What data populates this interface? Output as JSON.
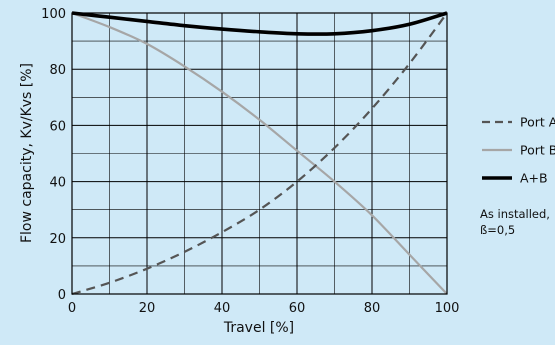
{
  "chart_data": {
    "type": "line",
    "title": "",
    "xlabel": "Travel [%]",
    "ylabel": "Flow capacity, Kv/Kvs [%]",
    "xlim": [
      0,
      100
    ],
    "ylim": [
      0,
      100
    ],
    "xticks": [
      0,
      20,
      40,
      60,
      80,
      100
    ],
    "yticks": [
      0,
      20,
      40,
      60,
      80,
      100
    ],
    "grid": true,
    "legend_position": "right",
    "series": [
      {
        "name": "Port A",
        "style": "dashed",
        "color": "#555555",
        "x": [
          0,
          10,
          20,
          30,
          40,
          50,
          60,
          70,
          80,
          90,
          100
        ],
        "y": [
          0,
          4,
          9,
          15,
          22,
          30,
          40,
          52,
          66,
          82,
          100
        ]
      },
      {
        "name": "Port B",
        "style": "solid",
        "color": "#a6a6a6",
        "x": [
          0,
          10,
          20,
          30,
          40,
          50,
          60,
          70,
          80,
          90,
          100
        ],
        "y": [
          100,
          95,
          89,
          81,
          72,
          62,
          51,
          40,
          28,
          14,
          0
        ]
      },
      {
        "name": "A+B",
        "style": "solid-thick",
        "color": "#000000",
        "x": [
          0,
          10,
          20,
          30,
          40,
          50,
          60,
          70,
          80,
          90,
          100
        ],
        "y": [
          100,
          98.5,
          97,
          95.5,
          94.3,
          93.3,
          92.6,
          92.6,
          93.7,
          96,
          100
        ]
      }
    ],
    "annotation": [
      "As installed,",
      "ß=0,5"
    ]
  }
}
